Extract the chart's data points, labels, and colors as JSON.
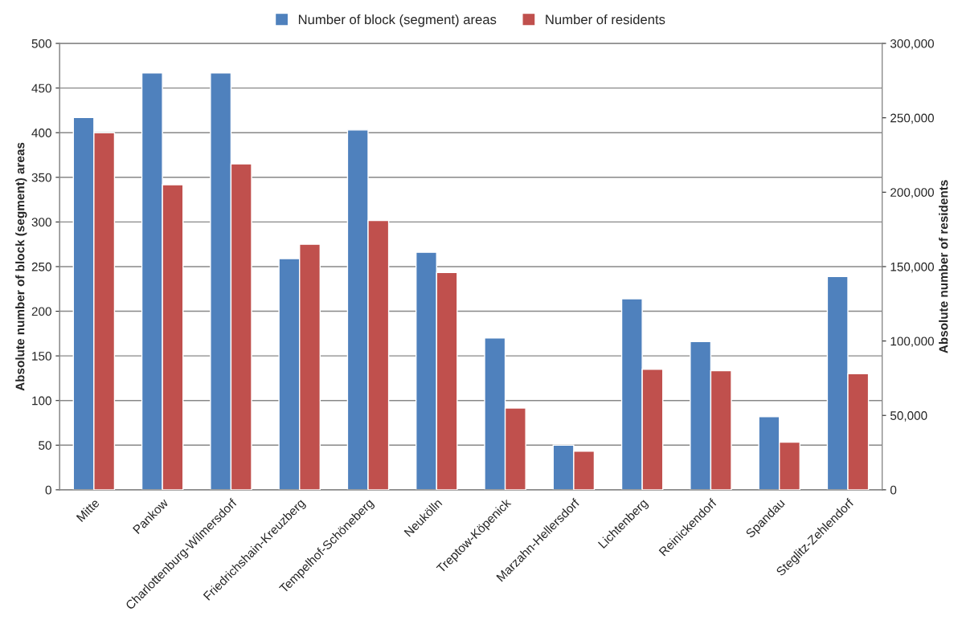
{
  "chart_data": {
    "type": "bar",
    "categories": [
      "Mitte",
      "Pankow",
      "Charlottenburg-Wilmersdorf",
      "Friedrichshain-Kreuzberg",
      "Tempelhof-Schöneberg",
      "Neukölln",
      "Treptow-Köpenick",
      "Marzahn-Hellersdorf",
      "Lichtenberg",
      "Reinickendorf",
      "Spandau",
      "Steglitz-Zehlendorf"
    ],
    "series": [
      {
        "name": "Number of block (segment) areas",
        "color": "#4f81bd",
        "values": [
          417,
          467,
          467,
          259,
          403,
          266,
          170,
          50,
          214,
          166,
          82,
          239
        ]
      },
      {
        "name": "Number of residents",
        "color": "#c0504d",
        "axis": "y2",
        "values": [
          240000,
          205000,
          219000,
          165000,
          181000,
          146000,
          55000,
          26000,
          81000,
          80000,
          32000,
          78000
        ]
      }
    ],
    "ylabel": "Absolute number of block (segment) areas",
    "y2label": "Absolute number of residents",
    "ylim": [
      0,
      500
    ],
    "yticks": [
      0,
      50,
      100,
      150,
      200,
      250,
      300,
      350,
      400,
      450,
      500
    ],
    "y2lim": [
      0,
      300000
    ],
    "y2ticks": [
      0,
      {
        "value": 50000,
        "label": "50,000"
      },
      {
        "value": 100000,
        "label": "100,000"
      },
      {
        "value": 150000,
        "label": "150,000"
      },
      {
        "value": 200000,
        "label": "200,000"
      },
      {
        "value": 250000,
        "label": "250,000"
      },
      {
        "value": 300000,
        "label": "300,000"
      }
    ],
    "grid": "y",
    "legend": "top"
  }
}
